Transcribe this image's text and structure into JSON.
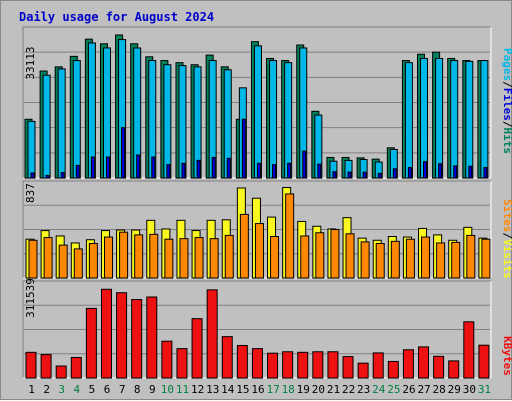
{
  "chart_data": [
    {
      "type": "bar",
      "title": "Daily usage for August 2024",
      "categories": [
        "1",
        "2",
        "3",
        "4",
        "5",
        "6",
        "7",
        "8",
        "9",
        "10",
        "11",
        "12",
        "13",
        "14",
        "15",
        "16",
        "17",
        "18",
        "19",
        "20",
        "21",
        "22",
        "23",
        "24",
        "25",
        "26",
        "27",
        "28",
        "29",
        "30",
        "31"
      ],
      "weekend_days": [
        "3",
        "4",
        "10",
        "11",
        "17",
        "18",
        "24",
        "25",
        "31"
      ],
      "y_tick_label": "33113",
      "ylim": [
        0,
        36000
      ],
      "legend": [
        "Pages",
        "Files",
        "Hits"
      ],
      "series": [
        {
          "name": "Hits",
          "values": [
            14000,
            25500,
            26500,
            29000,
            33100,
            32000,
            34100,
            32000,
            28900,
            28000,
            27500,
            27000,
            29300,
            26500,
            14000,
            32500,
            28500,
            28000,
            31700,
            15900,
            4900,
            4900,
            4800,
            4500,
            7200,
            28000,
            29500,
            30000,
            28500,
            28000,
            28000
          ]
        },
        {
          "name": "Files",
          "values": [
            13500,
            24500,
            26000,
            28000,
            32200,
            31000,
            33000,
            31000,
            28000,
            27000,
            26800,
            26500,
            28000,
            25800,
            21500,
            31500,
            28000,
            27500,
            31000,
            15000,
            4000,
            4200,
            4400,
            3800,
            6800,
            27500,
            28500,
            28500,
            28000,
            27800,
            28000
          ]
        },
        {
          "name": "Pages",
          "values": [
            1200,
            600,
            1300,
            3000,
            5000,
            5000,
            12000,
            5500,
            5000,
            3200,
            3500,
            4200,
            4900,
            4700,
            14000,
            3500,
            3200,
            3500,
            6400,
            3300,
            1500,
            1400,
            1400,
            1100,
            2200,
            2500,
            3900,
            3400,
            2900,
            2800,
            2500
          ]
        }
      ]
    },
    {
      "type": "bar",
      "y_tick_label": "837",
      "ylim": [
        0,
        900
      ],
      "legend": [
        "Sites",
        "Visits"
      ],
      "series": [
        {
          "name": "Visits",
          "values": [
            360,
            440,
            390,
            325,
            355,
            440,
            445,
            445,
            535,
            455,
            535,
            440,
            535,
            540,
            835,
            740,
            565,
            840,
            525,
            480,
            455,
            560,
            370,
            350,
            385,
            380,
            460,
            400,
            350,
            470,
            370
          ]
        },
        {
          "name": "Sites",
          "values": [
            350,
            375,
            305,
            270,
            320,
            380,
            425,
            400,
            405,
            360,
            365,
            375,
            365,
            395,
            590,
            505,
            385,
            780,
            390,
            420,
            450,
            410,
            335,
            320,
            340,
            360,
            380,
            325,
            330,
            395,
            360
          ]
        }
      ]
    },
    {
      "type": "bar",
      "y_tick_label": "311539",
      "ylim": [
        0,
        340000
      ],
      "legend": [
        "KBytes"
      ],
      "series": [
        {
          "name": "KBytes",
          "values": [
            90000,
            82000,
            42000,
            72000,
            244000,
            311000,
            299000,
            275000,
            284000,
            129000,
            103000,
            208000,
            309000,
            145000,
            114000,
            103000,
            87000,
            92000,
            90000,
            92000,
            92000,
            75000,
            52000,
            88000,
            58000,
            99000,
            109000,
            76000,
            60000,
            197000,
            115000
          ]
        }
      ]
    }
  ],
  "colors": {
    "title": "#0000cc",
    "hits": "#00805c",
    "files": "#00b8e8",
    "pages": "#0000e0",
    "visits": "#f8f820",
    "sites": "#ff8800",
    "kbytes": "#ee1111",
    "grid": "#808080",
    "weekday_label": "#000000",
    "weekend_label": "#008040"
  }
}
